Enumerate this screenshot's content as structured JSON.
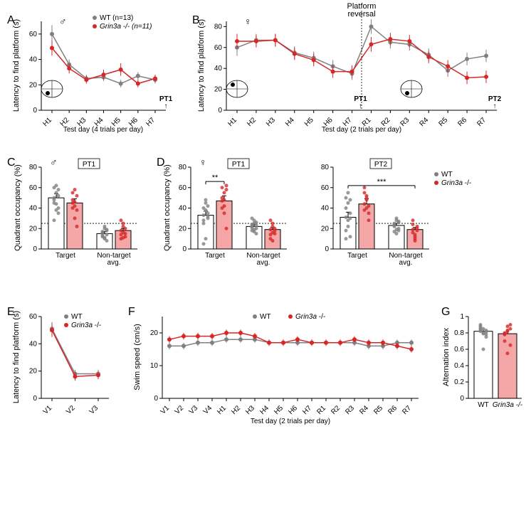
{
  "colors": {
    "wt": "#808080",
    "ko": "#d62728",
    "wt_bar": "#ffffff",
    "ko_bar": "#f5a6a6",
    "axis": "#000000",
    "scatter_wt": "#808080",
    "scatter_ko": "#d62728"
  },
  "legend": {
    "wt": "WT (n=13)",
    "ko_html": "Grin3a -/- (n=11)",
    "wt_short": "WT",
    "ko_short_html": "Grin3a -/-"
  },
  "panelA": {
    "label": "A",
    "sex": "♂",
    "xlabel": "Test day (4 trials per day)",
    "ylabel": "Latency to find platform (s)",
    "x_ticks": [
      "H1",
      "H2",
      "H3",
      "H4",
      "H5",
      "H6",
      "H7"
    ],
    "y_lim": [
      0,
      70
    ],
    "y_ticks": [
      0,
      20,
      40,
      60
    ],
    "wt": [
      60,
      36,
      25,
      26,
      21,
      27,
      24
    ],
    "wt_err": [
      7,
      4,
      3,
      3,
      3,
      3,
      3
    ],
    "ko": [
      49,
      33,
      24,
      28,
      32,
      21,
      25
    ],
    "ko_err": [
      6,
      4,
      3,
      4,
      5,
      3,
      3
    ],
    "pt1_label": "PT1",
    "platform_quadrant": "SW"
  },
  "panelB": {
    "label": "B",
    "sex": "♀",
    "xlabel": "Test day (2 trials per day)",
    "ylabel": "Latency to find platform (s)",
    "x_ticks": [
      "H1",
      "H2",
      "H3",
      "H4",
      "H5",
      "H6",
      "H7",
      "R1",
      "R2",
      "R3",
      "R4",
      "R5",
      "R6",
      "R7"
    ],
    "y_lim": [
      0,
      85
    ],
    "y_ticks": [
      0,
      20,
      40,
      60,
      80
    ],
    "wt": [
      60,
      67,
      67,
      55,
      50,
      42,
      35,
      80,
      65,
      63,
      53,
      38,
      49,
      52
    ],
    "wt_err": [
      8,
      6,
      6,
      6,
      6,
      6,
      6,
      7,
      6,
      6,
      6,
      6,
      6,
      6
    ],
    "ko": [
      66,
      66,
      67,
      54,
      48,
      37,
      37,
      63,
      68,
      66,
      51,
      42,
      31,
      32
    ],
    "ko_err": [
      7,
      6,
      6,
      6,
      6,
      6,
      6,
      7,
      6,
      6,
      6,
      6,
      6,
      6
    ],
    "reversal_after": 7,
    "reversal_label": "Platform\nreversal",
    "pt1_label": "PT1",
    "pt2_label": "PT2",
    "platform_q1": "NW",
    "platform_q2": "SW"
  },
  "panelC": {
    "label": "C",
    "sex": "♂",
    "pt": "PT1",
    "ylabel": "Quadrant occupancy (%)",
    "y_lim": [
      0,
      80
    ],
    "y_ticks": [
      0,
      20,
      40,
      60,
      80
    ],
    "groups": [
      "Target",
      "Non-target\navg."
    ],
    "wt_mean": [
      50,
      15
    ],
    "wt_err": [
      4,
      2
    ],
    "ko_mean": [
      45,
      18
    ],
    "ko_err": [
      4,
      2
    ],
    "chance": 25,
    "wt_scatter_target": [
      50,
      62,
      40,
      45,
      55,
      58,
      48,
      38,
      52,
      60,
      44,
      35,
      28
    ],
    "ko_scatter_target": [
      45,
      42,
      52,
      55,
      30,
      38,
      48,
      58,
      22,
      40,
      46
    ],
    "wt_scatter_nt": [
      15,
      10,
      18,
      12,
      20,
      14,
      16,
      11,
      19,
      13,
      22,
      8,
      17
    ],
    "ko_scatter_nt": [
      18,
      22,
      15,
      10,
      25,
      12,
      28,
      16,
      20,
      14,
      11
    ]
  },
  "panelD": {
    "label": "D",
    "sex": "♀",
    "pt1": {
      "pt": "PT1",
      "wt_mean": [
        33,
        22
      ],
      "wt_err": [
        4,
        2
      ],
      "ko_mean": [
        47,
        19
      ],
      "ko_err": [
        5,
        2
      ],
      "sig_label": "**",
      "wt_scatter_target": [
        33,
        38,
        42,
        28,
        10,
        35,
        40,
        45,
        30,
        25,
        48,
        32,
        5
      ],
      "ko_scatter_target": [
        47,
        55,
        62,
        40,
        35,
        58,
        50,
        42,
        20,
        60,
        48
      ],
      "wt_scatter_nt": [
        22,
        25,
        20,
        18,
        28,
        15,
        24,
        19,
        26,
        21,
        17,
        23,
        30
      ],
      "ko_scatter_nt": [
        19,
        22,
        15,
        10,
        25,
        18,
        28,
        16,
        20,
        14,
        8
      ]
    },
    "pt2": {
      "pt": "PT2",
      "wt_mean": [
        31,
        23
      ],
      "wt_err": [
        5,
        2
      ],
      "ko_mean": [
        44,
        19
      ],
      "ko_err": [
        5,
        2
      ],
      "sig_label": "***",
      "wt_scatter_target": [
        31,
        45,
        12,
        50,
        28,
        35,
        40,
        22,
        48,
        10,
        55,
        30,
        18
      ],
      "ko_scatter_target": [
        44,
        52,
        35,
        60,
        40,
        28,
        55,
        48,
        42,
        38,
        50
      ],
      "wt_scatter_nt": [
        23,
        28,
        18,
        24,
        30,
        20,
        25,
        15,
        27,
        22,
        19,
        26,
        17
      ],
      "ko_scatter_nt": [
        19,
        14,
        22,
        28,
        12,
        18,
        24,
        10,
        20,
        16,
        8
      ]
    },
    "ylabel": "Quadrant occupancy (%)",
    "y_lim": [
      0,
      80
    ],
    "y_ticks": [
      0,
      20,
      40,
      60,
      80
    ],
    "groups": [
      "Target",
      "Non-target\navg."
    ],
    "chance": 25
  },
  "panelE": {
    "label": "E",
    "ylabel": "Latency to find platform (s)",
    "x_ticks": [
      "V1",
      "V2",
      "V3"
    ],
    "y_lim": [
      0,
      60
    ],
    "y_ticks": [
      0,
      20,
      40,
      60
    ],
    "wt": [
      51,
      18,
      18
    ],
    "wt_err": [
      5,
      3,
      3
    ],
    "ko": [
      50,
      16,
      17
    ],
    "ko_err": [
      5,
      3,
      3
    ]
  },
  "panelF": {
    "label": "F",
    "ylabel": "Swim speed (cm/s)",
    "xlabel": "Test day (2 trials per day)",
    "x_ticks": [
      "V1",
      "V2",
      "V3",
      "V4",
      "H1",
      "H2",
      "H3",
      "H4",
      "H5",
      "H6",
      "H7",
      "R1",
      "R2",
      "R3",
      "R4",
      "R5",
      "R6",
      "R7"
    ],
    "y_lim": [
      0,
      25
    ],
    "y_ticks": [
      0,
      10,
      20
    ],
    "wt": [
      16,
      16,
      17,
      17,
      18,
      18,
      18,
      17,
      17,
      17,
      17,
      17,
      17,
      17,
      16,
      16,
      17,
      17
    ],
    "wt_err": [
      1,
      1,
      1,
      1,
      1,
      1,
      1,
      1,
      1,
      1,
      1,
      1,
      1,
      1,
      1,
      1,
      1,
      1
    ],
    "ko": [
      18,
      19,
      19,
      19,
      20,
      20,
      19,
      17,
      17,
      18,
      17,
      17,
      17,
      18,
      17,
      17,
      16,
      15
    ],
    "ko_err": [
      1,
      1,
      1,
      1,
      1,
      1,
      1,
      1,
      1,
      1,
      1,
      1,
      1,
      1,
      1,
      1,
      1,
      1
    ]
  },
  "panelG": {
    "label": "G",
    "ylabel": "Alternation index",
    "y_lim": [
      0,
      1.0
    ],
    "y_ticks": [
      0,
      0.2,
      0.4,
      0.6,
      0.8,
      1.0
    ],
    "x_ticks": [
      "WT",
      "Grin3a -/-"
    ],
    "wt_mean": 0.82,
    "wt_err": 0.02,
    "ko_mean": 0.79,
    "ko_err": 0.03,
    "wt_scatter": [
      0.82,
      0.85,
      0.78,
      0.88,
      0.8,
      0.75,
      0.9,
      0.6,
      0.83,
      0.86,
      0.79,
      0.81,
      0.84
    ],
    "ko_scatter": [
      0.79,
      0.82,
      0.85,
      0.7,
      0.55,
      0.9,
      0.78,
      0.83,
      0.65,
      0.8,
      0.88
    ]
  }
}
